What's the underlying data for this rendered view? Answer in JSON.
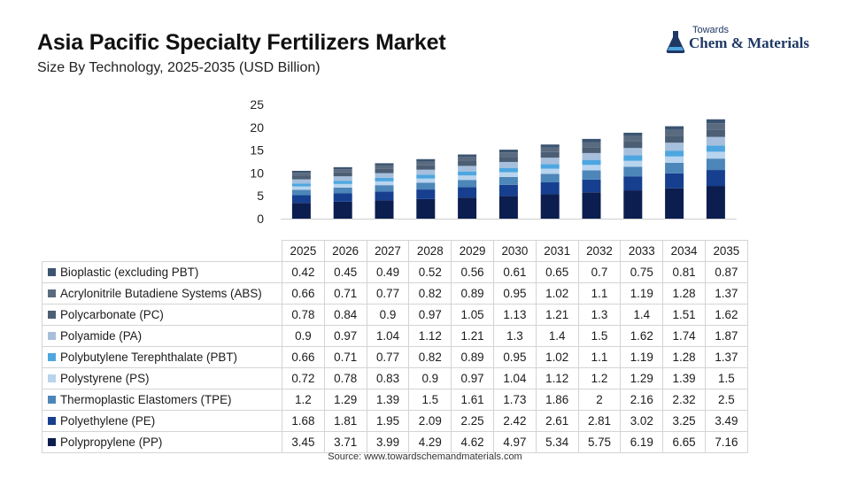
{
  "header": {
    "title": "Asia Pacific Specialty Fertilizers Market",
    "subtitle": "Size By Technology, 2025-2035 (USD Billion)"
  },
  "logo": {
    "small": "Towards",
    "main": "Chem & Materials"
  },
  "source": "Source: www.towardschemandmaterials.com",
  "chart_data": {
    "type": "bar",
    "stacked": true,
    "categories": [
      "2025",
      "2026",
      "2027",
      "2028",
      "2029",
      "2030",
      "2031",
      "2032",
      "2033",
      "2034",
      "2035"
    ],
    "ylim": [
      0,
      25
    ],
    "yticks": [
      0,
      5,
      10,
      15,
      20,
      25
    ],
    "grid": false,
    "legend": "data-table",
    "series": [
      {
        "name": "Bioplastic (excluding PBT)",
        "color": "#3b5471",
        "values": [
          0.42,
          0.45,
          0.49,
          0.52,
          0.56,
          0.61,
          0.65,
          0.7,
          0.75,
          0.81,
          0.87
        ]
      },
      {
        "name": "Acrylonitrile Butadiene Systems (ABS)",
        "color": "#5a6b80",
        "values": [
          0.66,
          0.71,
          0.77,
          0.82,
          0.89,
          0.95,
          1.02,
          1.1,
          1.19,
          1.28,
          1.37
        ]
      },
      {
        "name": "Polycarbonate (PC)",
        "color": "#4b5e74",
        "values": [
          0.78,
          0.84,
          0.9,
          0.97,
          1.05,
          1.13,
          1.21,
          1.3,
          1.4,
          1.51,
          1.62
        ]
      },
      {
        "name": "Polyamide (PA)",
        "color": "#a6bfdc",
        "values": [
          0.9,
          0.97,
          1.04,
          1.12,
          1.21,
          1.3,
          1.4,
          1.5,
          1.62,
          1.74,
          1.87
        ]
      },
      {
        "name": "Polybutylene Terephthalate (PBT)",
        "color": "#4ea6e0",
        "values": [
          0.66,
          0.71,
          0.77,
          0.82,
          0.89,
          0.95,
          1.02,
          1.1,
          1.19,
          1.28,
          1.37
        ]
      },
      {
        "name": "Polystyrene (PS)",
        "color": "#b8d4ee",
        "values": [
          0.72,
          0.78,
          0.83,
          0.9,
          0.97,
          1.04,
          1.12,
          1.2,
          1.29,
          1.39,
          1.5
        ]
      },
      {
        "name": "Thermoplastic Elastomers (TPE)",
        "color": "#4d86b8",
        "values": [
          1.2,
          1.29,
          1.39,
          1.5,
          1.61,
          1.73,
          1.86,
          2,
          2.16,
          2.32,
          2.5
        ]
      },
      {
        "name": "Polyethylene (PE)",
        "color": "#173f8f",
        "values": [
          1.68,
          1.81,
          1.95,
          2.09,
          2.25,
          2.42,
          2.61,
          2.81,
          3.02,
          3.25,
          3.49
        ]
      },
      {
        "name": "Polypropylene (PP)",
        "color": "#0c1d4f",
        "values": [
          3.45,
          3.71,
          3.99,
          4.29,
          4.62,
          4.97,
          5.34,
          5.75,
          6.19,
          6.65,
          7.16
        ]
      }
    ]
  }
}
